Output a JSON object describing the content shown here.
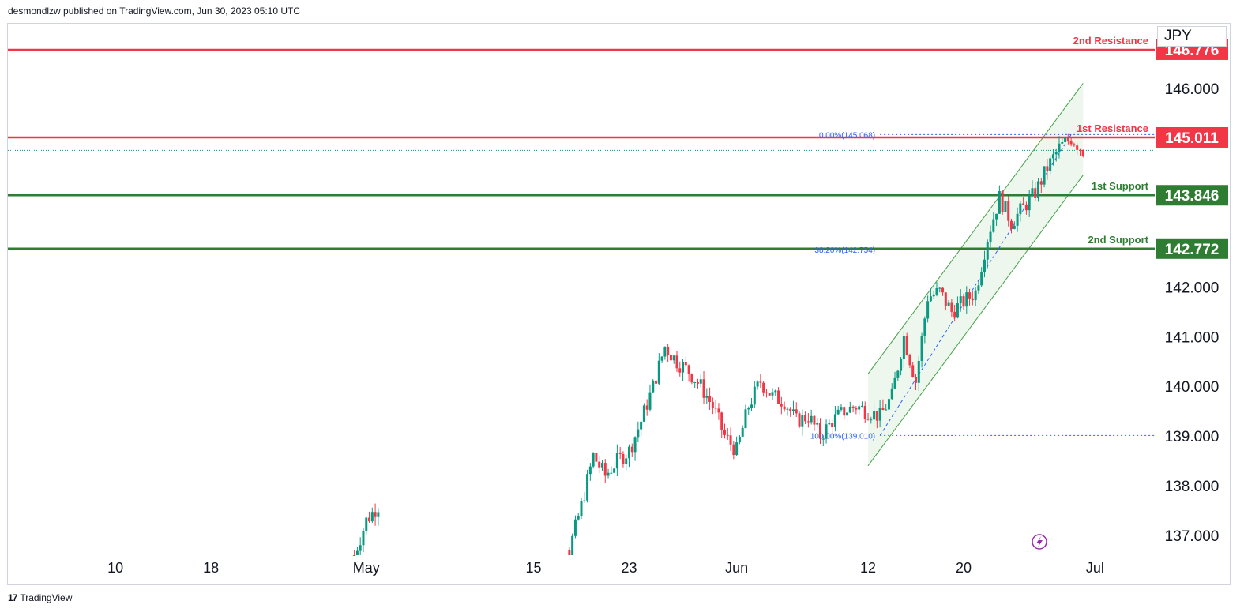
{
  "header": {
    "published": "desmondlzw published on TradingView.com, Jun 30, 2023 05:10 UTC"
  },
  "currency": "JPY",
  "footer": {
    "brand": "TradingView",
    "logo_text": "17"
  },
  "colors": {
    "resistance": "#f23645",
    "support": "#2e7d32",
    "bull": "#089981",
    "bear": "#f23645",
    "channel": "#43a047",
    "fib": "#2962ff"
  },
  "chart_data": {
    "type": "candlestick",
    "symbol_currency": "JPY",
    "y_axis": {
      "range": [
        136.6,
        147.3
      ],
      "ticks": [
        137.0,
        138.0,
        139.0,
        140.0,
        141.0,
        142.0,
        146.0
      ],
      "tick_labels": [
        "137.000",
        "138.000",
        "139.000",
        "140.000",
        "141.000",
        "142.000",
        "146.000"
      ]
    },
    "x_axis": {
      "range": [
        "2023-04-01",
        "2023-07-06"
      ],
      "ticks": [
        "2023-04-10",
        "2023-04-18",
        "2023-05-01",
        "2023-05-15",
        "2023-05-23",
        "2023-06-01",
        "2023-06-12",
        "2023-06-20",
        "2023-07-01"
      ],
      "tick_labels": [
        "10",
        "18",
        "May",
        "15",
        "23",
        "Jun",
        "12",
        "20",
        "Jul"
      ]
    },
    "levels": [
      {
        "label": "2nd Resistance",
        "value": 146.776,
        "value_label": "146.776",
        "kind": "resistance"
      },
      {
        "label": "1st Resistance",
        "value": 145.011,
        "value_label": "145.011",
        "kind": "resistance"
      },
      {
        "label": "1st Support",
        "value": 143.846,
        "value_label": "143.846",
        "kind": "support"
      },
      {
        "label": "2nd Support",
        "value": 142.772,
        "value_label": "142.772",
        "kind": "support"
      }
    ],
    "current_price": 144.75,
    "fibonacci": [
      {
        "label": "0.00%(145.068)",
        "value": 145.068
      },
      {
        "label": "38.20%(142.754)",
        "value": 142.754
      },
      {
        "label": "100.00%(139.010)",
        "value": 139.01
      }
    ],
    "fib_anchor": {
      "start": [
        "2023-06-13",
        139.01
      ],
      "end": [
        "2023-06-29",
        145.068
      ]
    },
    "channel": {
      "upper": {
        "start": [
          "2023-06-12",
          140.25
        ],
        "end": [
          "2023-06-30",
          146.1
        ]
      },
      "lower": {
        "start": [
          "2023-06-12",
          138.4
        ],
        "end": [
          "2023-06-30",
          144.25
        ]
      }
    },
    "path_points": [
      [
        "2023-04-30",
        136.6
      ],
      [
        "2023-05-01",
        137.3
      ],
      [
        "2023-05-02",
        137.6
      ],
      [
        "2023-05-02",
        137.0
      ],
      [
        "2023-05-02",
        136.6
      ],
      [
        "2023-05-18",
        136.7
      ],
      [
        "2023-05-19",
        137.6
      ],
      [
        "2023-05-20",
        138.6
      ],
      [
        "2023-05-21",
        138.2
      ],
      [
        "2023-05-22",
        138.5
      ],
      [
        "2023-05-23",
        138.7
      ],
      [
        "2023-05-24",
        139.3
      ],
      [
        "2023-05-25",
        140.0
      ],
      [
        "2023-05-26",
        140.8
      ],
      [
        "2023-05-27",
        140.5
      ],
      [
        "2023-05-28",
        140.3
      ],
      [
        "2023-05-29",
        140.0
      ],
      [
        "2023-05-30",
        139.6
      ],
      [
        "2023-05-31",
        139.0
      ],
      [
        "2023-06-01",
        138.7
      ],
      [
        "2023-06-02",
        139.6
      ],
      [
        "2023-06-03",
        140.1
      ],
      [
        "2023-06-04",
        139.8
      ],
      [
        "2023-06-05",
        139.7
      ],
      [
        "2023-06-06",
        139.3
      ],
      [
        "2023-06-07",
        139.4
      ],
      [
        "2023-06-08",
        139.0
      ],
      [
        "2023-06-09",
        139.3
      ],
      [
        "2023-06-10",
        139.5
      ],
      [
        "2023-06-11",
        139.6
      ],
      [
        "2023-06-12",
        139.5
      ],
      [
        "2023-06-13",
        139.4
      ],
      [
        "2023-06-14",
        139.8
      ],
      [
        "2023-06-15",
        141.0
      ],
      [
        "2023-06-16",
        140.1
      ],
      [
        "2023-06-17",
        141.8
      ],
      [
        "2023-06-18",
        141.9
      ],
      [
        "2023-06-19",
        141.5
      ],
      [
        "2023-06-20",
        141.7
      ],
      [
        "2023-06-21",
        141.9
      ],
      [
        "2023-06-22",
        143.0
      ],
      [
        "2023-06-23",
        143.8
      ],
      [
        "2023-06-24",
        143.3
      ],
      [
        "2023-06-25",
        143.6
      ],
      [
        "2023-06-26",
        143.9
      ],
      [
        "2023-06-27",
        144.4
      ],
      [
        "2023-06-28",
        144.8
      ],
      [
        "2023-06-29",
        145.0
      ],
      [
        "2023-06-30",
        144.75
      ]
    ]
  }
}
